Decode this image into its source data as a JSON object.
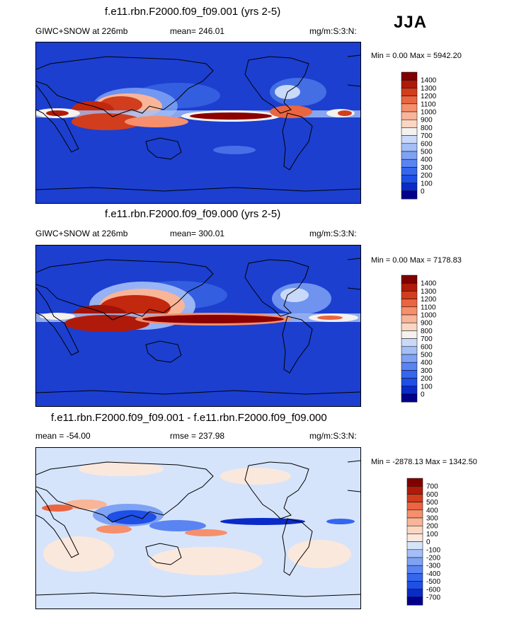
{
  "season": "JJA",
  "panels": [
    {
      "title": "f.e11.rbn.F2000.f09_f09.001 (yrs 2-5)",
      "left_label": "GIWC+SNOW at 226mb",
      "stat_label": "mean= 246.01",
      "units": "mg/m:S:3:N:",
      "minmax": "Min =   0.00 Max = 5942.20"
    },
    {
      "title": "f.e11.rbn.F2000.f09_f09.000 (yrs 2-5)",
      "left_label": "GIWC+SNOW at 226mb",
      "stat_label": "mean= 300.01",
      "units": "mg/m:S:3:N:",
      "minmax": "Min =   0.00 Max = 7178.83"
    },
    {
      "title": "f.e11.rbn.F2000.f09_f09.001 - f.e11.rbn.F2000.f09_f09.000",
      "left_label": "mean = -54.00",
      "stat_label": "rmse = 237.98",
      "units": "mg/m:S:3:N:",
      "minmax": "Min = -2878.13 Max = 1342.50"
    }
  ],
  "chart_data": [
    {
      "type": "heatmap",
      "title": "f.e11.rbn.F2000.f09_f09.001 (yrs 2-5)",
      "variable": "GIWC+SNOW at 226mb",
      "units": "mg/m:S:3:N:",
      "mean": 246.01,
      "min": 0.0,
      "max": 5942.2,
      "colorbar_levels": [
        0,
        100,
        200,
        300,
        400,
        500,
        600,
        700,
        800,
        900,
        1000,
        1100,
        1200,
        1300,
        1400
      ],
      "colorbar_colors": [
        "#00008b",
        "#0a2bc8",
        "#1e4fe6",
        "#3566f0",
        "#5a84f2",
        "#7ea2f4",
        "#a4bff7",
        "#c8d9fa",
        "#f4f1ee",
        "#fbd6c2",
        "#f9b598",
        "#f58f6c",
        "#ea6540",
        "#d23d1e",
        "#b01a0a",
        "#800000"
      ]
    },
    {
      "type": "heatmap",
      "title": "f.e11.rbn.F2000.f09_f09.000 (yrs 2-5)",
      "variable": "GIWC+SNOW at 226mb",
      "units": "mg/m:S:3:N:",
      "mean": 300.01,
      "min": 0.0,
      "max": 7178.83,
      "colorbar_levels": [
        0,
        100,
        200,
        300,
        400,
        500,
        600,
        700,
        800,
        900,
        1000,
        1100,
        1200,
        1300,
        1400
      ],
      "colorbar_colors": [
        "#00008b",
        "#0a2bc8",
        "#1e4fe6",
        "#3566f0",
        "#5a84f2",
        "#7ea2f4",
        "#a4bff7",
        "#c8d9fa",
        "#f4f1ee",
        "#fbd6c2",
        "#f9b598",
        "#f58f6c",
        "#ea6540",
        "#d23d1e",
        "#b01a0a",
        "#800000"
      ]
    },
    {
      "type": "heatmap",
      "title": "f.e11.rbn.F2000.f09_f09.001 - f.e11.rbn.F2000.f09_f09.000",
      "units": "mg/m:S:3:N:",
      "mean": -54.0,
      "rmse": 237.98,
      "min": -2878.13,
      "max": 1342.5,
      "colorbar_levels": [
        -700,
        -600,
        -500,
        -400,
        -300,
        -200,
        -100,
        0,
        100,
        200,
        300,
        400,
        500,
        600,
        700
      ],
      "colorbar_colors": [
        "#00008b",
        "#0a2bc8",
        "#1e4fe6",
        "#3566f0",
        "#5a84f2",
        "#7ea2f4",
        "#a4bff7",
        "#d6e4fb",
        "#fbe8dc",
        "#fbd6c2",
        "#f9b598",
        "#f58f6c",
        "#ea6540",
        "#d23d1e",
        "#b01a0a",
        "#800000"
      ]
    }
  ]
}
